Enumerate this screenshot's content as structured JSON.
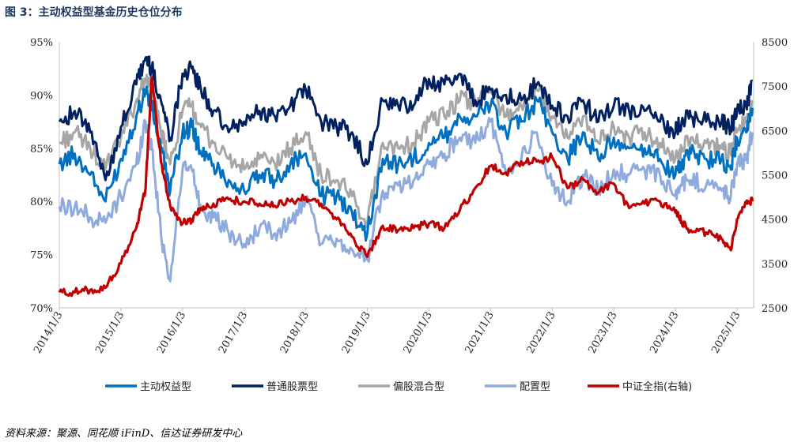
{
  "title": "图 3：主动权益型基金历史仓位分布",
  "source": "资料来源：聚源、同花顺 iFinD、信达证券研发中心",
  "chart_data": {
    "type": "line",
    "categories": [
      "2014/1/3",
      "2015/1/3",
      "2016/1/3",
      "2017/1/3",
      "2018/1/3",
      "2019/1/3",
      "2020/1/3",
      "2021/1/3",
      "2022/1/3",
      "2023/1/3",
      "2024/1/3",
      "2025/1/3"
    ],
    "ylim": [
      70,
      95
    ],
    "y_ticks": [
      "70%",
      "75%",
      "80%",
      "85%",
      "90%",
      "95%"
    ],
    "y2lim": [
      2500,
      8500
    ],
    "y2_ticks": [
      "2500",
      "3500",
      "4500",
      "5500",
      "6500",
      "7500",
      "8500"
    ],
    "x": [
      2014.0,
      2014.25,
      2014.5,
      2014.75,
      2015.0,
      2015.25,
      2015.4,
      2015.5,
      2015.65,
      2015.8,
      2016.0,
      2016.15,
      2016.3,
      2016.5,
      2016.75,
      2017.0,
      2017.25,
      2017.5,
      2017.75,
      2018.0,
      2018.25,
      2018.5,
      2018.75,
      2019.0,
      2019.25,
      2019.5,
      2019.75,
      2020.0,
      2020.25,
      2020.5,
      2020.75,
      2021.0,
      2021.25,
      2021.5,
      2021.75,
      2022.0,
      2022.25,
      2022.5,
      2022.75,
      2023.0,
      2023.25,
      2023.5,
      2023.75,
      2024.0,
      2024.1,
      2024.25,
      2024.5,
      2024.75,
      2024.9,
      2025.0,
      2025.15,
      2025.25
    ],
    "series": [
      {
        "name": "主动权益型",
        "color": "#0070c0",
        "axis": "left",
        "values": [
          83.5,
          84.5,
          82.5,
          80.0,
          84.0,
          88.0,
          90.5,
          89.0,
          85.0,
          81.0,
          86.5,
          87.0,
          84.5,
          83.5,
          82.0,
          81.0,
          82.5,
          82.0,
          83.5,
          84.5,
          80.5,
          80.5,
          79.0,
          77.0,
          84.0,
          83.5,
          84.0,
          85.5,
          86.0,
          88.0,
          88.0,
          89.0,
          86.5,
          87.5,
          89.5,
          86.5,
          84.0,
          86.5,
          84.0,
          86.0,
          85.0,
          85.0,
          84.0,
          82.5,
          83.5,
          84.5,
          84.0,
          84.0,
          83.0,
          86.0,
          86.5,
          88.8
        ]
      },
      {
        "name": "普通股票型",
        "color": "#002060",
        "axis": "left",
        "values": [
          87.5,
          88.5,
          86.5,
          82.0,
          87.0,
          91.0,
          93.5,
          92.5,
          89.5,
          86.0,
          92.0,
          92.5,
          90.5,
          88.5,
          86.5,
          87.5,
          88.5,
          88.0,
          89.0,
          90.5,
          87.5,
          87.0,
          86.5,
          83.5,
          89.5,
          89.0,
          89.0,
          91.5,
          91.0,
          92.0,
          89.5,
          90.5,
          90.0,
          89.5,
          91.0,
          89.0,
          88.0,
          89.5,
          87.5,
          89.0,
          88.5,
          88.5,
          87.5,
          86.5,
          87.5,
          88.0,
          87.5,
          87.5,
          87.0,
          88.5,
          89.0,
          91.3
        ]
      },
      {
        "name": "偏股混合型",
        "color": "#a6a6a6",
        "axis": "left",
        "values": [
          85.5,
          86.5,
          85.0,
          83.0,
          86.0,
          89.5,
          91.5,
          90.5,
          86.5,
          83.5,
          88.5,
          89.0,
          87.0,
          85.5,
          84.0,
          83.0,
          84.0,
          83.5,
          85.0,
          86.5,
          82.5,
          82.0,
          80.5,
          78.0,
          85.5,
          85.0,
          85.5,
          87.5,
          88.0,
          89.5,
          89.5,
          90.5,
          88.0,
          89.0,
          90.5,
          88.0,
          86.0,
          88.0,
          85.5,
          87.0,
          86.0,
          86.5,
          85.5,
          84.0,
          85.0,
          86.0,
          85.5,
          85.0,
          84.5,
          86.5,
          87.5,
          89.5
        ]
      },
      {
        "name": "配置型",
        "color": "#8faadc",
        "axis": "left",
        "values": [
          79.5,
          79.5,
          78.5,
          78.0,
          80.5,
          83.5,
          87.5,
          85.0,
          77.0,
          72.5,
          83.0,
          83.0,
          79.5,
          78.5,
          77.0,
          76.0,
          77.5,
          77.0,
          78.0,
          80.0,
          76.0,
          76.5,
          75.5,
          74.5,
          81.0,
          81.5,
          82.0,
          83.5,
          84.5,
          86.0,
          85.5,
          87.5,
          82.5,
          84.0,
          86.5,
          81.5,
          80.0,
          82.5,
          81.0,
          83.0,
          82.5,
          83.0,
          82.5,
          80.5,
          81.5,
          82.0,
          81.5,
          81.0,
          80.5,
          83.5,
          84.0,
          86.5
        ]
      },
      {
        "name": "中证全指(右轴)",
        "color": "#c00000",
        "axis": "right",
        "values": [
          2850,
          2850,
          2900,
          2950,
          3500,
          4300,
          5200,
          7700,
          5800,
          4800,
          4400,
          4500,
          4750,
          4850,
          4950,
          4900,
          4850,
          4800,
          4900,
          5000,
          4850,
          4500,
          4100,
          3650,
          4350,
          4250,
          4300,
          4400,
          4300,
          4700,
          5200,
          5700,
          5550,
          5800,
          5800,
          5900,
          5200,
          5400,
          5100,
          5300,
          4750,
          4850,
          4900,
          4650,
          4450,
          4250,
          4200,
          4050,
          3800,
          4500,
          4850,
          4900
        ]
      }
    ]
  }
}
